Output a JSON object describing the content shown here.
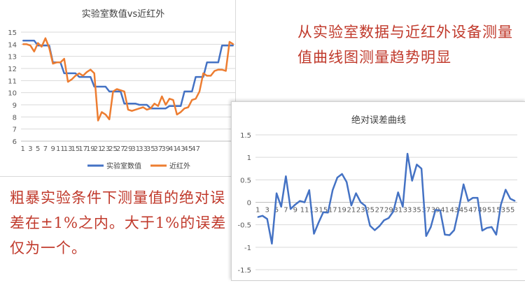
{
  "annotations": {
    "top_right": "从实验室数据与近红外设备测量值曲线图测量趋势明显",
    "bottom_left": "粗暴实验条件下测量值的绝对误差在±1%之内。大于1%的误差仅为一个。"
  },
  "colors": {
    "lab": "#4472c4",
    "nir": "#ed7d31",
    "error": "#4472c4",
    "note": "#c0392b"
  },
  "chart_data": [
    {
      "type": "line",
      "title": "实验室数值vs近红外",
      "xlabel": "",
      "ylabel": "",
      "ylim": [
        6,
        15
      ],
      "yticks": [
        6,
        7,
        8,
        9,
        10,
        11,
        12,
        13,
        14,
        15
      ],
      "xticks": [
        "1",
        "3",
        "5",
        "7",
        "9",
        "11",
        "13",
        "15",
        "17",
        "19",
        "21",
        "23",
        "25",
        "27",
        "29",
        "31",
        "33",
        "35",
        "37",
        "39",
        "41",
        "43",
        "45",
        "47"
      ],
      "legend_position": "bottom",
      "series": [
        {
          "name": "实验室数值",
          "values": [
            14.3,
            14.3,
            14.3,
            14.3,
            13.9,
            13.9,
            13.9,
            13.9,
            12.5,
            12.5,
            12.5,
            11.6,
            11.6,
            11.6,
            11.6,
            11.3,
            11.3,
            11.3,
            11.3,
            10.5,
            10.5,
            10.5,
            10.5,
            10.1,
            10.1,
            10.1,
            10.1,
            9.1,
            9.1,
            9.1,
            9.1,
            9.0,
            9.0,
            9.0,
            8.7,
            8.7,
            8.7,
            8.7,
            8.7,
            8.9,
            8.9,
            8.9,
            8.9,
            10.1,
            10.1,
            10.1,
            11.3,
            11.3,
            11.3,
            12.5,
            12.5,
            12.5,
            12.5,
            13.9,
            13.9,
            13.9,
            13.9
          ]
        },
        {
          "name": "近红外",
          "values": [
            14.0,
            14.0,
            13.9,
            13.4,
            14.1,
            13.8,
            14.5,
            13.7,
            12.4,
            12.5,
            12.5,
            12.8,
            10.9,
            11.1,
            11.4,
            11.6,
            11.4,
            11.7,
            11.9,
            11.6,
            7.7,
            8.4,
            8.2,
            7.8,
            10.1,
            10.3,
            10.2,
            10.1,
            8.6,
            8.5,
            8.6,
            8.7,
            8.8,
            8.6,
            8.7,
            9.1,
            8.9,
            9.7,
            9.0,
            9.5,
            9.4,
            8.2,
            8.4,
            8.7,
            8.8,
            9.4,
            9.5,
            10.1,
            11.6,
            11.4,
            11.4,
            11.8,
            11.9,
            11.9,
            11.8,
            14.2,
            14.0
          ]
        }
      ]
    },
    {
      "type": "line",
      "title": "绝对误差曲线",
      "xlabel": "",
      "ylabel": "",
      "ylim": [
        -1.5,
        1.5
      ],
      "yticks": [
        -1.5,
        -1,
        -0.5,
        0,
        0.5,
        1,
        1.5
      ],
      "xticks": [
        "1",
        "3",
        "5",
        "7",
        "9",
        "11",
        "13",
        "15",
        "17",
        "19",
        "21",
        "23",
        "25",
        "27",
        "29",
        "31",
        "33",
        "35",
        "37",
        "39",
        "41",
        "43",
        "45",
        "47",
        "49",
        "51",
        "53",
        "55"
      ],
      "series": [
        {
          "values": [
            -0.33,
            -0.3,
            -0.37,
            -0.92,
            0.2,
            -0.1,
            0.58,
            -0.15,
            -0.05,
            0.03,
            0.0,
            0.27,
            -0.7,
            -0.45,
            -0.22,
            -0.23,
            0.27,
            0.55,
            0.63,
            0.45,
            -0.07,
            0.2,
            0.0,
            -0.08,
            -0.52,
            -0.62,
            -0.53,
            -0.4,
            -0.35,
            -0.2,
            0.22,
            -0.1,
            1.08,
            0.48,
            0.84,
            0.75,
            -0.75,
            -0.55,
            -0.17,
            -0.18,
            -0.72,
            -0.73,
            -0.62,
            -0.15,
            0.4,
            0.03,
            0.1,
            0.1,
            -0.63,
            -0.57,
            -0.55,
            -0.72,
            -0.05,
            0.28,
            0.08,
            0.03
          ]
        }
      ]
    }
  ]
}
